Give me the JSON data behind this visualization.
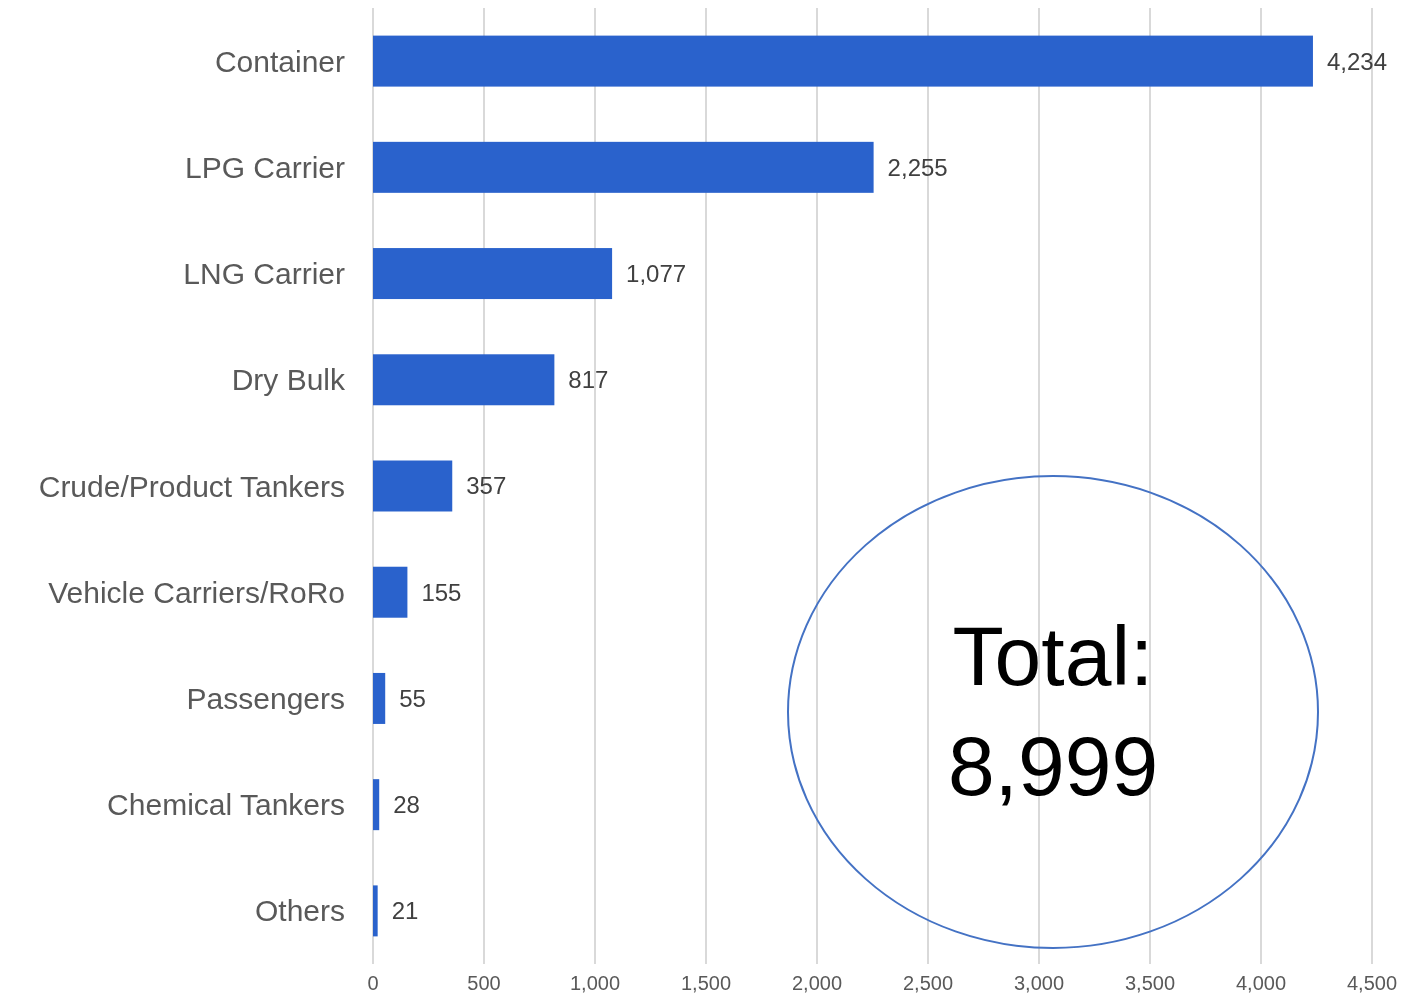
{
  "chart_data": {
    "type": "bar",
    "orientation": "horizontal",
    "categories": [
      "Container",
      "LPG Carrier",
      "LNG Carrier",
      "Dry Bulk",
      "Crude/Product Tankers",
      "Vehicle Carriers/RoRo",
      "Passengers",
      "Chemical Tankers",
      "Others"
    ],
    "values": [
      4234,
      2255,
      1077,
      817,
      357,
      155,
      55,
      28,
      21
    ],
    "color": "#2a62cc",
    "xlim": [
      0,
      4500
    ],
    "xticks": [
      0,
      500,
      {
        "value": 1000,
        "label": "1,000"
      },
      {
        "value": 1500,
        "label": "1,500"
      },
      {
        "value": 2000,
        "label": "2,000"
      },
      {
        "value": 2500,
        "label": "2,500"
      },
      {
        "value": 3000,
        "label": "3,000"
      },
      {
        "value": 3500,
        "label": "3,500"
      },
      {
        "value": 4000,
        "label": "4,000"
      },
      {
        "value": 4500,
        "label": "4,500"
      }
    ],
    "grid": "x",
    "value_labels": [
      "4,234",
      "2,255",
      "1,077",
      "817",
      "357",
      "155",
      "55",
      "28",
      "21"
    ],
    "annotations": [
      "Total: 8,999"
    ]
  }
}
